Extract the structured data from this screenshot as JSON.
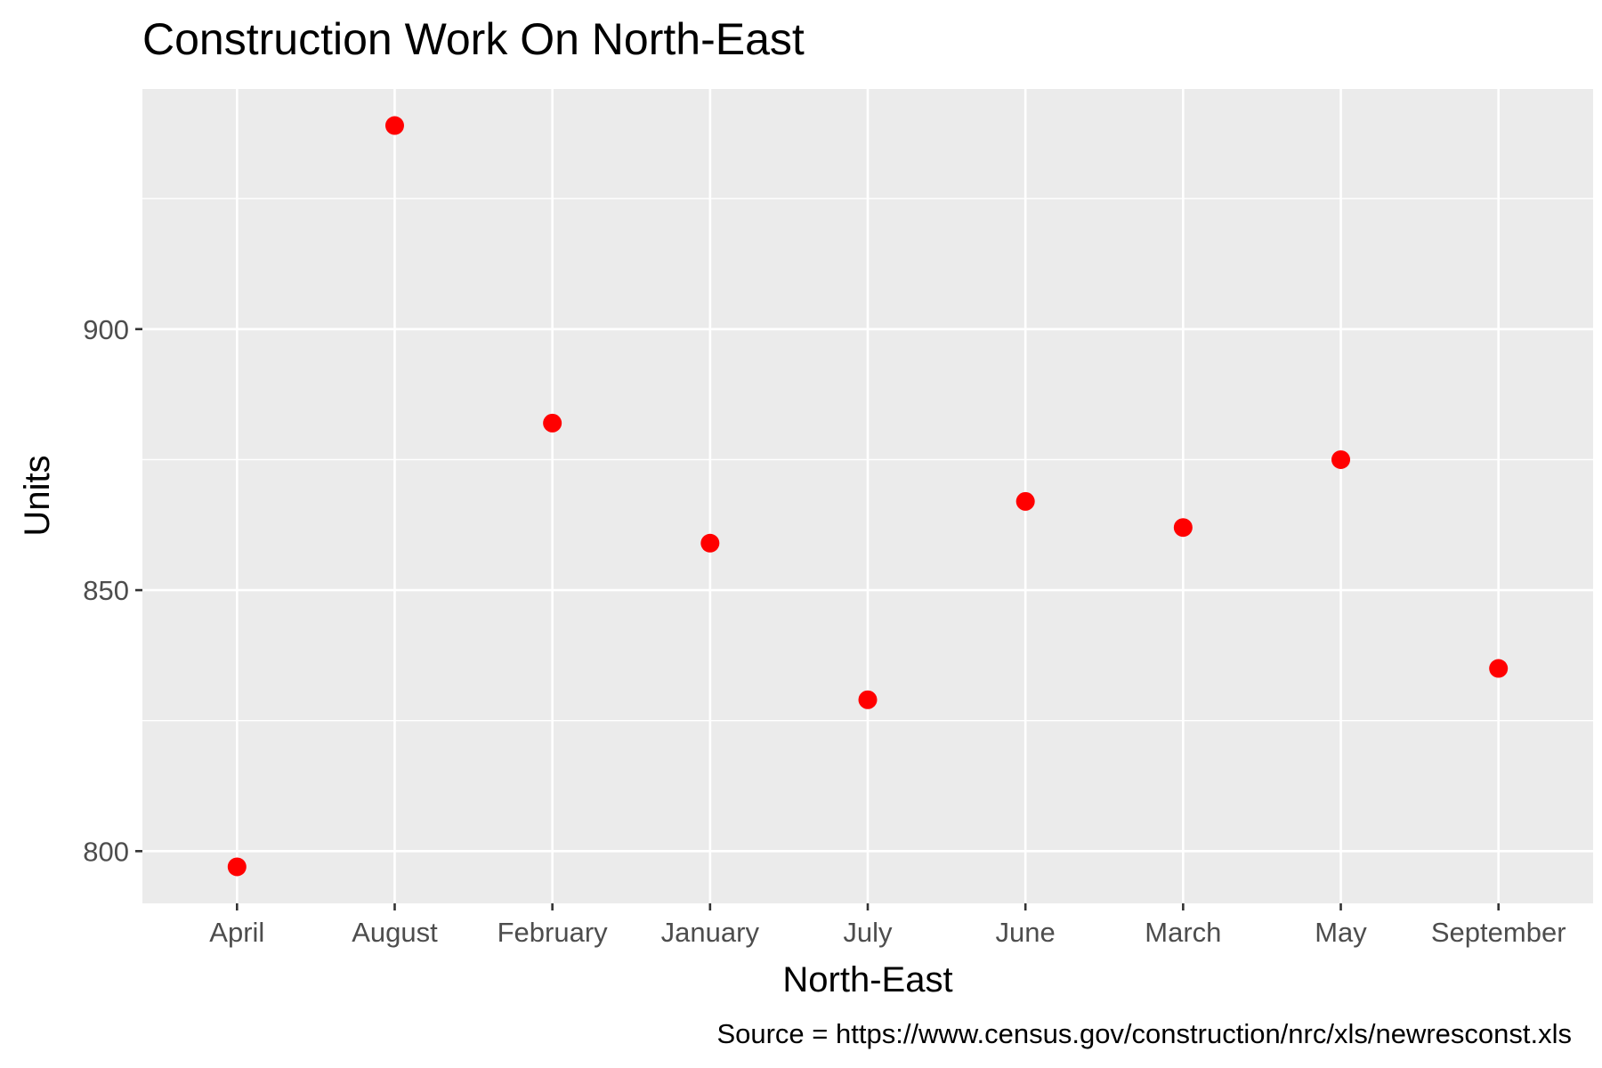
{
  "chart_data": {
    "type": "scatter",
    "title": "Construction Work On North-East",
    "xlabel": "North-East",
    "ylabel": "Units",
    "caption": "Source = https://www.census.gov/construction/nrc/xls/newresconst.xls",
    "categories": [
      "April",
      "August",
      "February",
      "January",
      "July",
      "June",
      "March",
      "May",
      "September"
    ],
    "values": [
      797,
      939,
      882,
      859,
      829,
      867,
      862,
      875,
      835
    ],
    "yticks": [
      800,
      850,
      900
    ],
    "ylim": [
      790,
      946
    ],
    "grid": true,
    "legend": "none",
    "colors": {
      "point": "#ff0000",
      "panel_background": "#ebebeb",
      "grid_line": "#ffffff",
      "tick_mark": "#333333",
      "tick_label": "#4d4d4d"
    }
  }
}
